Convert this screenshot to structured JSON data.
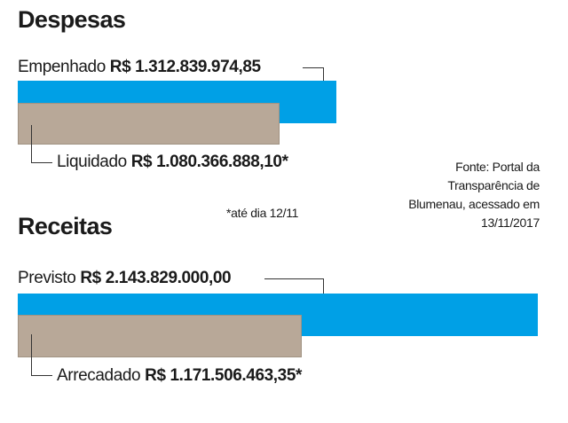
{
  "chart_data": [
    {
      "type": "bar",
      "title": "Despesas",
      "currency": "R$",
      "series": [
        {
          "name": "Empenhado",
          "value": 1312839974.85,
          "label": "R$ 1.312.839.974,85",
          "color": "#00a0e6"
        },
        {
          "name": "Liquidado",
          "value": 1080366888.1,
          "label": "R$ 1.080.366.888,10*",
          "color": "#b8a898"
        }
      ]
    },
    {
      "type": "bar",
      "title": "Receitas",
      "currency": "R$",
      "series": [
        {
          "name": "Previsto",
          "value": 2143829000.0,
          "label": "R$ 2.143.829.000,00",
          "color": "#00a0e6"
        },
        {
          "name": "Arrecadado",
          "value": 1171506463.35,
          "label": "R$ 1.171.506.463,35*",
          "color": "#b8a898"
        }
      ]
    }
  ],
  "source": "Fonte: Portal da Transparência de Blumenau, acessado em 13/11/2017",
  "footnote": "*até dia 12/11"
}
